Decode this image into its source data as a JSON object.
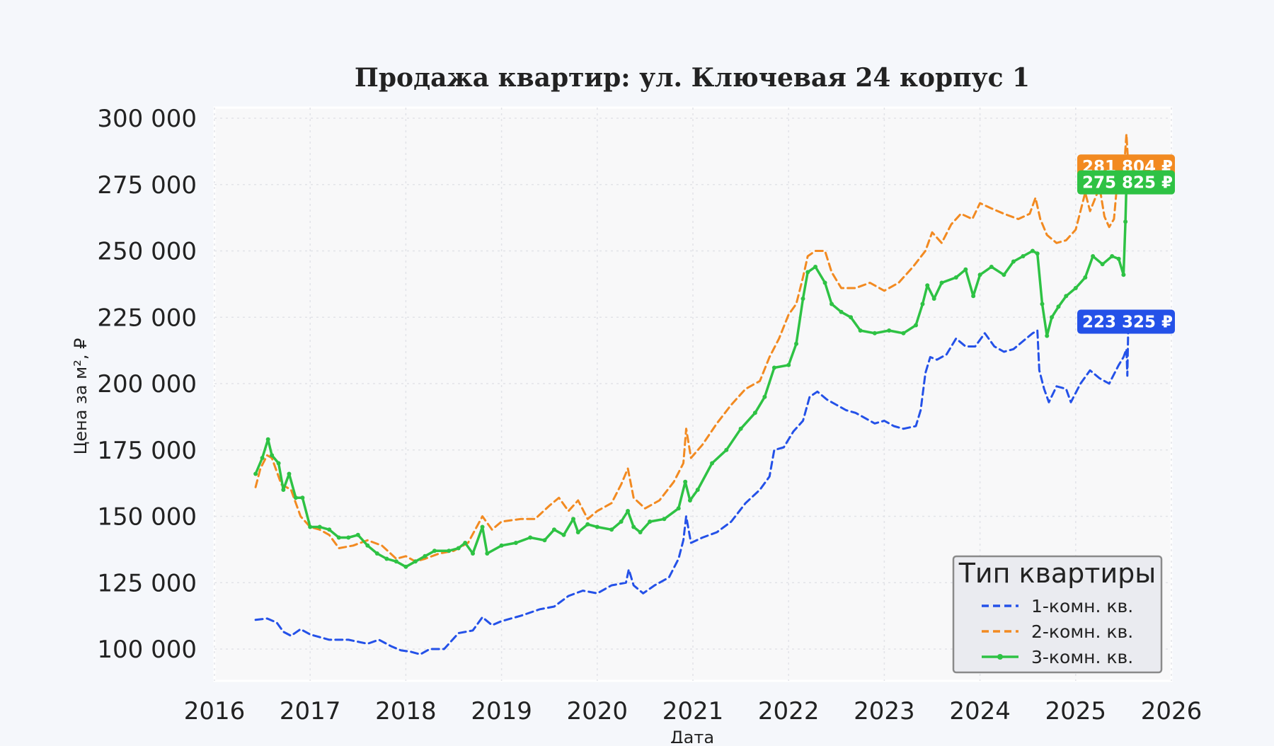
{
  "chart_data": {
    "type": "line",
    "title": "Продажа квартир: ул. Ключевая 24 корпус 1",
    "xlabel": "Дата",
    "ylabel": "Цена за м², ₽",
    "xlim": [
      2016,
      2026
    ],
    "ylim": [
      88000,
      304000
    ],
    "x_ticks": [
      "2016",
      "2017",
      "2018",
      "2019",
      "2020",
      "2021",
      "2022",
      "2023",
      "2024",
      "2025",
      "2026"
    ],
    "y_ticks": [
      100000,
      125000,
      150000,
      175000,
      200000,
      225000,
      250000,
      275000,
      300000
    ],
    "y_tick_labels": [
      "100 000",
      "125 000",
      "150 000",
      "175 000",
      "200 000",
      "225 000",
      "250 000",
      "275 000",
      "300 000"
    ],
    "grid": true,
    "legend": {
      "title": "Тип квартиры",
      "position": "bottom-right"
    },
    "series": [
      {
        "name": "1-комн. кв.",
        "color": "#2451e8",
        "style": "dashed",
        "last_label": "223 325 ₽",
        "points": [
          [
            2016.43,
            111000
          ],
          [
            2016.55,
            111500
          ],
          [
            2016.65,
            110000
          ],
          [
            2016.72,
            106500
          ],
          [
            2016.8,
            105000
          ],
          [
            2016.9,
            107500
          ],
          [
            2017.0,
            105500
          ],
          [
            2017.2,
            103500
          ],
          [
            2017.4,
            103500
          ],
          [
            2017.6,
            102000
          ],
          [
            2017.72,
            103500
          ],
          [
            2017.85,
            101000
          ],
          [
            2017.95,
            99500
          ],
          [
            2018.05,
            99000
          ],
          [
            2018.15,
            98000
          ],
          [
            2018.25,
            100000
          ],
          [
            2018.4,
            100000
          ],
          [
            2018.55,
            106000
          ],
          [
            2018.7,
            107000
          ],
          [
            2018.8,
            112000
          ],
          [
            2018.9,
            109000
          ],
          [
            2019.0,
            110500
          ],
          [
            2019.2,
            112500
          ],
          [
            2019.4,
            115000
          ],
          [
            2019.55,
            116000
          ],
          [
            2019.7,
            120000
          ],
          [
            2019.85,
            122000
          ],
          [
            2020.0,
            121000
          ],
          [
            2020.15,
            124000
          ],
          [
            2020.3,
            125000
          ],
          [
            2020.33,
            130000
          ],
          [
            2020.38,
            124000
          ],
          [
            2020.48,
            121000
          ],
          [
            2020.6,
            124000
          ],
          [
            2020.75,
            127000
          ],
          [
            2020.85,
            134000
          ],
          [
            2020.9,
            141000
          ],
          [
            2020.93,
            150000
          ],
          [
            2020.98,
            140000
          ],
          [
            2021.1,
            142000
          ],
          [
            2021.25,
            144000
          ],
          [
            2021.4,
            148000
          ],
          [
            2021.55,
            155000
          ],
          [
            2021.7,
            160000
          ],
          [
            2021.8,
            165000
          ],
          [
            2021.85,
            175000
          ],
          [
            2021.95,
            176000
          ],
          [
            2022.05,
            182000
          ],
          [
            2022.15,
            186000
          ],
          [
            2022.22,
            195000
          ],
          [
            2022.3,
            197000
          ],
          [
            2022.4,
            194000
          ],
          [
            2022.5,
            192000
          ],
          [
            2022.6,
            190000
          ],
          [
            2022.7,
            189000
          ],
          [
            2022.8,
            187000
          ],
          [
            2022.9,
            185000
          ],
          [
            2023.0,
            186000
          ],
          [
            2023.1,
            184000
          ],
          [
            2023.2,
            183000
          ],
          [
            2023.33,
            184000
          ],
          [
            2023.38,
            190000
          ],
          [
            2023.43,
            204000
          ],
          [
            2023.48,
            210000
          ],
          [
            2023.55,
            209000
          ],
          [
            2023.65,
            211000
          ],
          [
            2023.75,
            217000
          ],
          [
            2023.85,
            214000
          ],
          [
            2023.95,
            214000
          ],
          [
            2024.05,
            219000
          ],
          [
            2024.15,
            214000
          ],
          [
            2024.25,
            212000
          ],
          [
            2024.35,
            213000
          ],
          [
            2024.45,
            216000
          ],
          [
            2024.55,
            219000
          ],
          [
            2024.6,
            220000
          ],
          [
            2024.62,
            205000
          ],
          [
            2024.67,
            198000
          ],
          [
            2024.72,
            193000
          ],
          [
            2024.8,
            199000
          ],
          [
            2024.9,
            198000
          ],
          [
            2024.95,
            193000
          ],
          [
            2025.05,
            200000
          ],
          [
            2025.15,
            205000
          ],
          [
            2025.25,
            202000
          ],
          [
            2025.35,
            200000
          ],
          [
            2025.45,
            207000
          ],
          [
            2025.5,
            210000
          ],
          [
            2025.53,
            213000
          ],
          [
            2025.54,
            203000
          ],
          [
            2025.55,
            223325
          ]
        ]
      },
      {
        "name": "2-комн. кв.",
        "color": "#f28a21",
        "style": "dashed",
        "last_label": "281 804 ₽",
        "points": [
          [
            2016.43,
            161000
          ],
          [
            2016.48,
            168000
          ],
          [
            2016.55,
            173000
          ],
          [
            2016.6,
            172000
          ],
          [
            2016.7,
            162000
          ],
          [
            2016.8,
            160000
          ],
          [
            2016.9,
            150000
          ],
          [
            2017.0,
            146000
          ],
          [
            2017.1,
            145000
          ],
          [
            2017.2,
            143000
          ],
          [
            2017.3,
            138000
          ],
          [
            2017.45,
            139000
          ],
          [
            2017.6,
            141000
          ],
          [
            2017.75,
            139000
          ],
          [
            2017.9,
            134000
          ],
          [
            2018.0,
            135000
          ],
          [
            2018.1,
            133000
          ],
          [
            2018.2,
            134000
          ],
          [
            2018.35,
            136000
          ],
          [
            2018.5,
            137000
          ],
          [
            2018.65,
            140000
          ],
          [
            2018.8,
            150000
          ],
          [
            2018.9,
            145000
          ],
          [
            2019.0,
            148000
          ],
          [
            2019.2,
            149000
          ],
          [
            2019.35,
            149000
          ],
          [
            2019.5,
            154000
          ],
          [
            2019.6,
            157000
          ],
          [
            2019.7,
            152000
          ],
          [
            2019.8,
            156000
          ],
          [
            2019.9,
            149000
          ],
          [
            2020.0,
            152000
          ],
          [
            2020.15,
            155000
          ],
          [
            2020.25,
            162000
          ],
          [
            2020.32,
            168000
          ],
          [
            2020.38,
            157000
          ],
          [
            2020.5,
            153000
          ],
          [
            2020.65,
            156000
          ],
          [
            2020.8,
            163000
          ],
          [
            2020.9,
            170000
          ],
          [
            2020.93,
            183000
          ],
          [
            2020.98,
            172000
          ],
          [
            2021.1,
            177000
          ],
          [
            2021.25,
            185000
          ],
          [
            2021.4,
            192000
          ],
          [
            2021.55,
            198000
          ],
          [
            2021.7,
            201000
          ],
          [
            2021.8,
            210000
          ],
          [
            2021.9,
            217000
          ],
          [
            2022.0,
            226000
          ],
          [
            2022.08,
            230000
          ],
          [
            2022.15,
            240000
          ],
          [
            2022.2,
            248000
          ],
          [
            2022.28,
            250000
          ],
          [
            2022.38,
            250000
          ],
          [
            2022.45,
            242000
          ],
          [
            2022.55,
            236000
          ],
          [
            2022.7,
            236000
          ],
          [
            2022.85,
            238000
          ],
          [
            2023.0,
            235000
          ],
          [
            2023.15,
            238000
          ],
          [
            2023.3,
            244000
          ],
          [
            2023.43,
            250000
          ],
          [
            2023.5,
            257000
          ],
          [
            2023.6,
            253000
          ],
          [
            2023.7,
            260000
          ],
          [
            2023.8,
            264000
          ],
          [
            2023.92,
            262000
          ],
          [
            2024.0,
            268000
          ],
          [
            2024.12,
            266000
          ],
          [
            2024.25,
            264000
          ],
          [
            2024.4,
            262000
          ],
          [
            2024.52,
            264000
          ],
          [
            2024.58,
            270000
          ],
          [
            2024.63,
            262000
          ],
          [
            2024.7,
            256000
          ],
          [
            2024.8,
            253000
          ],
          [
            2024.9,
            254000
          ],
          [
            2025.0,
            258000
          ],
          [
            2025.05,
            265000
          ],
          [
            2025.1,
            272000
          ],
          [
            2025.15,
            265000
          ],
          [
            2025.25,
            274000
          ],
          [
            2025.3,
            263000
          ],
          [
            2025.35,
            259000
          ],
          [
            2025.4,
            262000
          ],
          [
            2025.45,
            282000
          ],
          [
            2025.5,
            278000
          ],
          [
            2025.53,
            294000
          ],
          [
            2025.55,
            281804
          ]
        ]
      },
      {
        "name": "3-комн. кв.",
        "color": "#2ec244",
        "style": "solid",
        "last_label": "275 825 ₽",
        "points": [
          [
            2016.43,
            166000
          ],
          [
            2016.5,
            172000
          ],
          [
            2016.56,
            179000
          ],
          [
            2016.6,
            173000
          ],
          [
            2016.67,
            170000
          ],
          [
            2016.72,
            160000
          ],
          [
            2016.78,
            166000
          ],
          [
            2016.85,
            157000
          ],
          [
            2016.92,
            157000
          ],
          [
            2017.0,
            146000
          ],
          [
            2017.1,
            146000
          ],
          [
            2017.2,
            145000
          ],
          [
            2017.3,
            142000
          ],
          [
            2017.4,
            142000
          ],
          [
            2017.5,
            143000
          ],
          [
            2017.6,
            139000
          ],
          [
            2017.7,
            136000
          ],
          [
            2017.8,
            134000
          ],
          [
            2017.9,
            133000
          ],
          [
            2018.0,
            131000
          ],
          [
            2018.1,
            133000
          ],
          [
            2018.2,
            135000
          ],
          [
            2018.3,
            137000
          ],
          [
            2018.45,
            137000
          ],
          [
            2018.55,
            138000
          ],
          [
            2018.62,
            140000
          ],
          [
            2018.7,
            136000
          ],
          [
            2018.8,
            146000
          ],
          [
            2018.85,
            136000
          ],
          [
            2019.0,
            139000
          ],
          [
            2019.15,
            140000
          ],
          [
            2019.3,
            142000
          ],
          [
            2019.45,
            141000
          ],
          [
            2019.55,
            145000
          ],
          [
            2019.65,
            143000
          ],
          [
            2019.75,
            149000
          ],
          [
            2019.8,
            144000
          ],
          [
            2019.9,
            147000
          ],
          [
            2020.0,
            146000
          ],
          [
            2020.15,
            145000
          ],
          [
            2020.25,
            148000
          ],
          [
            2020.32,
            152000
          ],
          [
            2020.38,
            146000
          ],
          [
            2020.45,
            144000
          ],
          [
            2020.55,
            148000
          ],
          [
            2020.7,
            149000
          ],
          [
            2020.85,
            153000
          ],
          [
            2020.92,
            163000
          ],
          [
            2020.97,
            156000
          ],
          [
            2021.05,
            160000
          ],
          [
            2021.2,
            170000
          ],
          [
            2021.35,
            175000
          ],
          [
            2021.5,
            183000
          ],
          [
            2021.65,
            189000
          ],
          [
            2021.75,
            195000
          ],
          [
            2021.85,
            206000
          ],
          [
            2022.0,
            207000
          ],
          [
            2022.08,
            215000
          ],
          [
            2022.15,
            232000
          ],
          [
            2022.2,
            242000
          ],
          [
            2022.28,
            244000
          ],
          [
            2022.38,
            238000
          ],
          [
            2022.45,
            230000
          ],
          [
            2022.55,
            227000
          ],
          [
            2022.65,
            225000
          ],
          [
            2022.75,
            220000
          ],
          [
            2022.9,
            219000
          ],
          [
            2023.05,
            220000
          ],
          [
            2023.2,
            219000
          ],
          [
            2023.33,
            222000
          ],
          [
            2023.4,
            230000
          ],
          [
            2023.45,
            237000
          ],
          [
            2023.52,
            232000
          ],
          [
            2023.6,
            238000
          ],
          [
            2023.75,
            240000
          ],
          [
            2023.85,
            243000
          ],
          [
            2023.93,
            233000
          ],
          [
            2024.0,
            241000
          ],
          [
            2024.12,
            244000
          ],
          [
            2024.25,
            241000
          ],
          [
            2024.35,
            246000
          ],
          [
            2024.45,
            248000
          ],
          [
            2024.55,
            250000
          ],
          [
            2024.6,
            249000
          ],
          [
            2024.65,
            230000
          ],
          [
            2024.7,
            218000
          ],
          [
            2024.75,
            225000
          ],
          [
            2024.82,
            229000
          ],
          [
            2024.9,
            233000
          ],
          [
            2025.0,
            236000
          ],
          [
            2025.1,
            240000
          ],
          [
            2025.18,
            248000
          ],
          [
            2025.28,
            245000
          ],
          [
            2025.38,
            248000
          ],
          [
            2025.45,
            247000
          ],
          [
            2025.5,
            241000
          ],
          [
            2025.52,
            261000
          ],
          [
            2025.53,
            275000
          ],
          [
            2025.55,
            275825
          ]
        ]
      }
    ]
  }
}
